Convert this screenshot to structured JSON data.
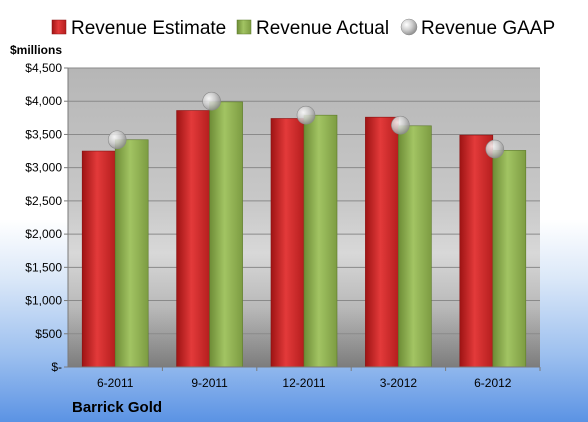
{
  "company": "Barrick Gold",
  "unit_label": "$millions",
  "colors": {
    "estimate": "#d42a2a",
    "actual": "#8fb24f",
    "gaap": "#c8c8c8"
  },
  "chart_data": {
    "type": "bar",
    "categories": [
      "6-2011",
      "9-2011",
      "12-2011",
      "3-2012",
      "6-2012"
    ],
    "series": [
      {
        "name": "Revenue Estimate",
        "kind": "bar",
        "values": [
          3250,
          3860,
          3740,
          3760,
          3490
        ]
      },
      {
        "name": "Revenue Actual",
        "kind": "bar",
        "values": [
          3420,
          3990,
          3790,
          3630,
          3260
        ]
      },
      {
        "name": "Revenue GAAP",
        "kind": "marker",
        "values": [
          3420,
          4000,
          3790,
          3640,
          3280
        ]
      }
    ],
    "ylim": [
      0,
      4500
    ],
    "yticks": [
      0,
      500,
      1000,
      1500,
      2000,
      2500,
      3000,
      3500,
      4000,
      4500
    ],
    "ytick_labels": [
      "$-",
      "$500",
      "$1,000",
      "$1,500",
      "$2,000",
      "$2,500",
      "$3,000",
      "$3,500",
      "$4,000",
      "$4,500"
    ],
    "title": "",
    "xlabel": "",
    "ylabel": "$millions",
    "legend_position": "top",
    "grid": true
  }
}
